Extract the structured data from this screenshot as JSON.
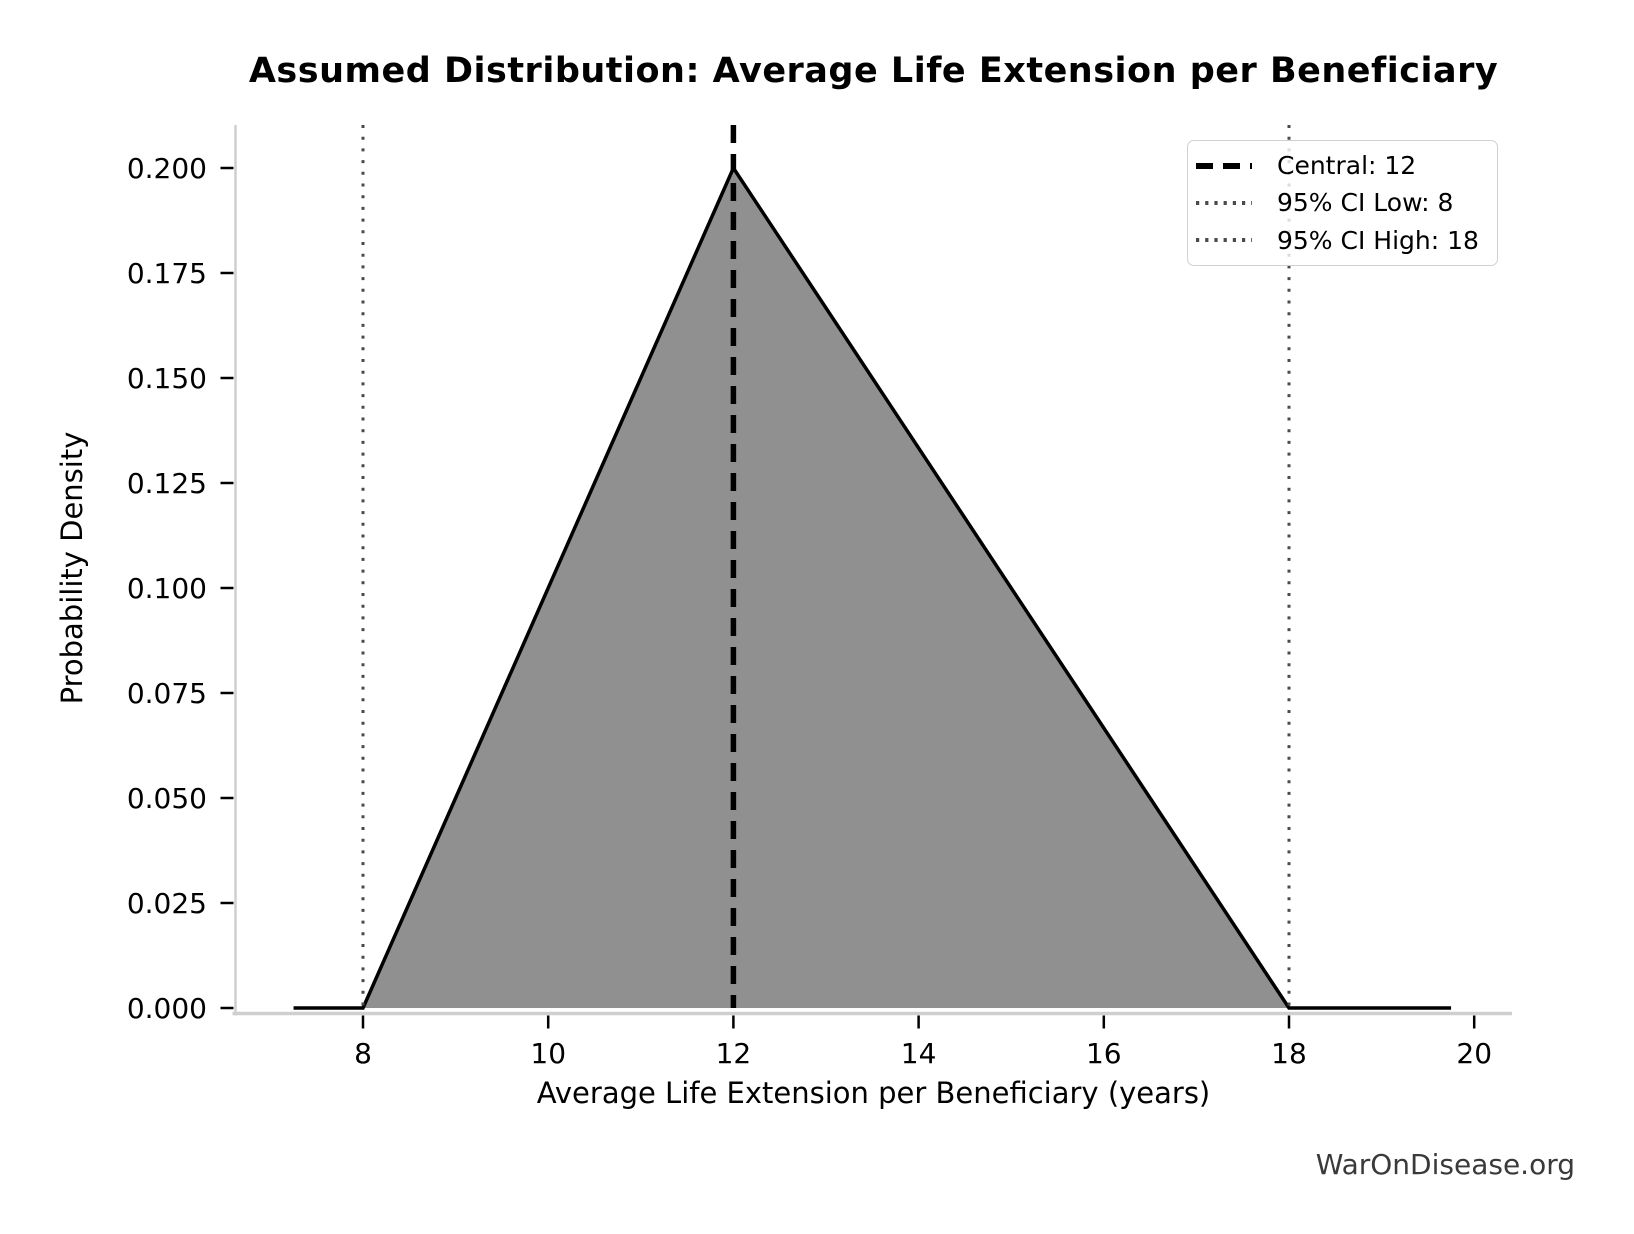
{
  "title": "Assumed Distribution: Average Life Extension per Beneficiary",
  "watermark": "WarOnDisease.org",
  "axes": {
    "xlabel": "Average Life Extension per Beneficiary (years)",
    "ylabel": "Probability Density",
    "x_tick_labels": [
      "8",
      "10",
      "12",
      "14",
      "16",
      "18",
      "20"
    ],
    "y_tick_labels": [
      "0.000",
      "0.025",
      "0.050",
      "0.075",
      "0.100",
      "0.125",
      "0.150",
      "0.175",
      "0.200"
    ]
  },
  "legend": {
    "items": [
      {
        "label": "Central: 12",
        "style": "dashed",
        "color": "#000000"
      },
      {
        "label": "95% CI Low: 8",
        "style": "dotted",
        "color": "#4a4a4a"
      },
      {
        "label": "95% CI High: 18",
        "style": "dotted",
        "color": "#4a4a4a"
      }
    ]
  },
  "chart_data": {
    "type": "area",
    "title": "Assumed Distribution: Average Life Extension per Beneficiary",
    "xlabel": "Average Life Extension per Beneficiary (years)",
    "ylabel": "Probability Density",
    "distribution": "triangular",
    "params": {
      "low": 8,
      "mode": 12,
      "high": 18,
      "peak_density": 0.2
    },
    "series": [
      {
        "name": "pdf",
        "x": [
          7.25,
          8,
          12,
          18,
          19.75
        ],
        "y": [
          0,
          0,
          0.2,
          0,
          0
        ]
      }
    ],
    "vlines": [
      {
        "x": 12,
        "label": "Central: 12",
        "style": "dashed",
        "color": "#000000"
      },
      {
        "x": 8,
        "label": "95% CI Low: 8",
        "style": "dotted",
        "color": "#4a4a4a"
      },
      {
        "x": 18,
        "label": "95% CI High: 18",
        "style": "dotted",
        "color": "#4a4a4a"
      }
    ],
    "x_ticks": [
      8,
      10,
      12,
      14,
      16,
      18,
      20
    ],
    "y_ticks": [
      0,
      0.025,
      0.05,
      0.075,
      0.1,
      0.125,
      0.15,
      0.175,
      0.2
    ],
    "xlim": [
      6.62,
      20.36
    ],
    "ylim": [
      0,
      0.2102
    ],
    "grid": false,
    "legend_position": "upper right",
    "colors": {
      "fill": "#909090",
      "line": "#000000",
      "spine": "#cfcfcf",
      "tick": "#000000"
    }
  }
}
